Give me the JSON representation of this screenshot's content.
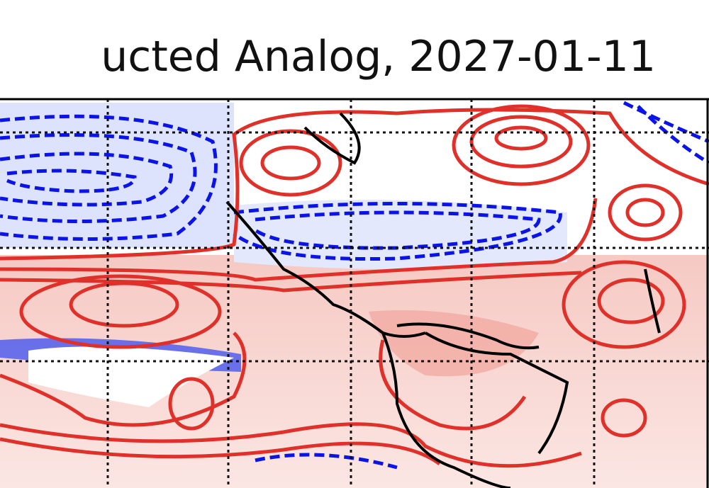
{
  "header": {
    "title": "ucted Analog, 2027-01-11"
  }
}
